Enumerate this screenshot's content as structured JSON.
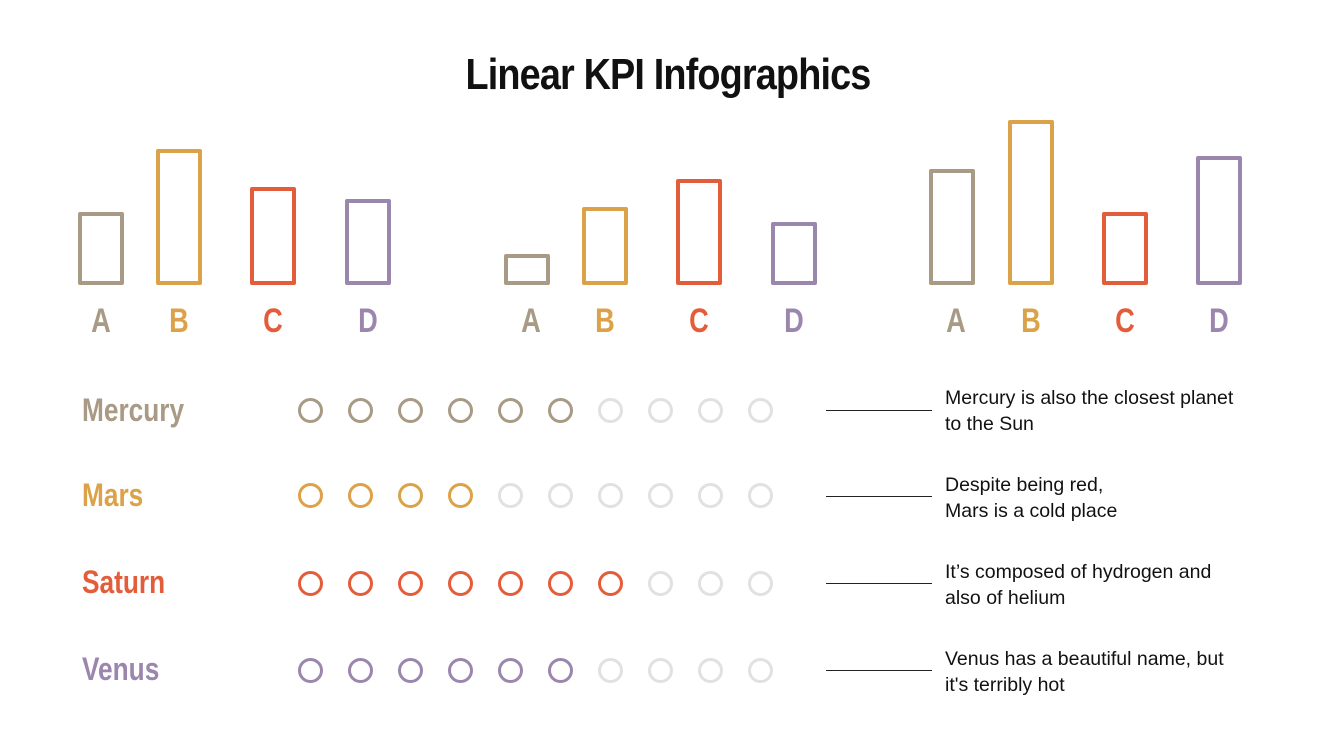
{
  "title": "Linear KPI Infographics",
  "colors": {
    "A": "#a89a85",
    "B": "#dba24a",
    "C": "#e35d3b",
    "D": "#9b86ad",
    "empty": "#e1e1e1"
  },
  "chart_data": [
    {
      "type": "bar",
      "title": "",
      "categories": [
        "A",
        "B",
        "C",
        "D"
      ],
      "values": [
        72,
        135,
        97,
        85
      ],
      "note": "relative heights in px (outline bars, no axis)"
    },
    {
      "type": "bar",
      "title": "",
      "categories": [
        "A",
        "B",
        "C",
        "D"
      ],
      "values": [
        30,
        77,
        105,
        62
      ],
      "note": "relative heights in px (outline bars, no axis)"
    },
    {
      "type": "bar",
      "title": "",
      "categories": [
        "A",
        "B",
        "C",
        "D"
      ],
      "values": [
        115,
        163,
        72,
        128
      ],
      "note": "relative heights in px (outline bars, no axis)"
    },
    {
      "type": "table",
      "title": "Planet KPI dot ratings (out of 10)",
      "categories": [
        "Mercury",
        "Mars",
        "Saturn",
        "Venus"
      ],
      "values": [
        6,
        4,
        7,
        6
      ],
      "max": 10
    }
  ],
  "groups": [
    {
      "labels": [
        "A",
        "B",
        "C",
        "D"
      ]
    },
    {
      "labels": [
        "A",
        "B",
        "C",
        "D"
      ]
    },
    {
      "labels": [
        "A",
        "B",
        "C",
        "D"
      ]
    }
  ],
  "rows": [
    {
      "name": "Mercury",
      "filled": 6,
      "total": 10,
      "desc": "Mercury is also the closest planet\nto the Sun"
    },
    {
      "name": "Mars",
      "filled": 4,
      "total": 10,
      "desc": "Despite being red,\nMars is a cold place"
    },
    {
      "name": "Saturn",
      "filled": 7,
      "total": 10,
      "desc": "It’s composed of hydrogen and\nalso of helium"
    },
    {
      "name": "Venus",
      "filled": 6,
      "total": 10,
      "desc": "Venus has a beautiful name, but\nit's terribly hot"
    }
  ]
}
